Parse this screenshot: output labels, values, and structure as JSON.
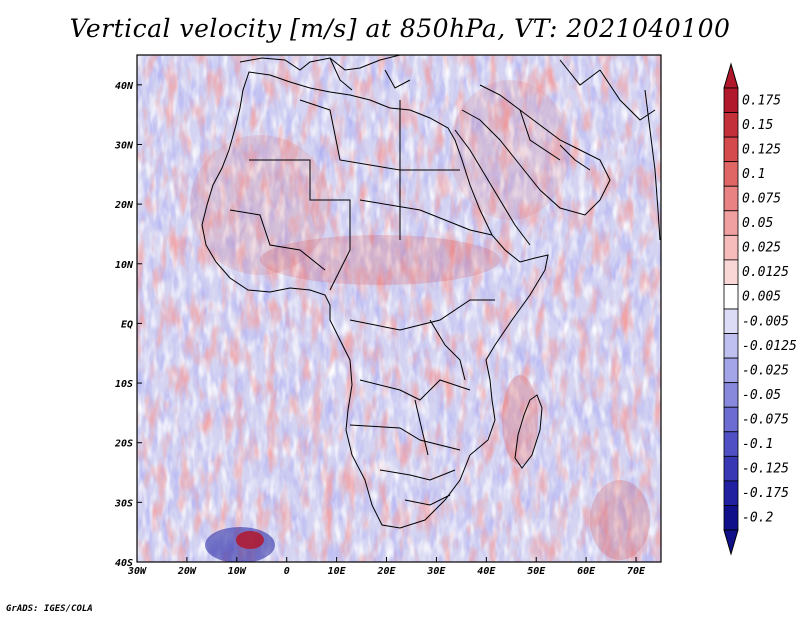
{
  "title": "Vertical velocity [m/s] at 850hPa, VT: 2021040100",
  "credit": "GrADS: IGES/COLA",
  "map": {
    "lon_range": [
      -30,
      75
    ],
    "lat_range": [
      -40,
      45
    ],
    "field": "vertical velocity",
    "level": "850hPa",
    "units": "m/s",
    "valid_time": "2021040100",
    "x_ticks": [
      {
        "value": -30,
        "label": "30W"
      },
      {
        "value": -20,
        "label": "20W"
      },
      {
        "value": -10,
        "label": "10W"
      },
      {
        "value": 0,
        "label": "0"
      },
      {
        "value": 10,
        "label": "10E"
      },
      {
        "value": 20,
        "label": "20E"
      },
      {
        "value": 30,
        "label": "30E"
      },
      {
        "value": 40,
        "label": "40E"
      },
      {
        "value": 50,
        "label": "50E"
      },
      {
        "value": 60,
        "label": "60E"
      },
      {
        "value": 70,
        "label": "70E"
      }
    ],
    "y_ticks": [
      {
        "value": 40,
        "label": "40N"
      },
      {
        "value": 30,
        "label": "30N"
      },
      {
        "value": 20,
        "label": "20N"
      },
      {
        "value": 10,
        "label": "10N"
      },
      {
        "value": 0,
        "label": "EQ"
      },
      {
        "value": -10,
        "label": "10S"
      },
      {
        "value": -20,
        "label": "20S"
      },
      {
        "value": -30,
        "label": "30S"
      },
      {
        "value": -40,
        "label": "40S"
      }
    ]
  },
  "colorbar": {
    "levels": [
      {
        "label": "0.175",
        "color": "#b2182b"
      },
      {
        "label": "0.15",
        "color": "#c4303a"
      },
      {
        "label": "0.125",
        "color": "#d44a4d"
      },
      {
        "label": "0.1",
        "color": "#e06666"
      },
      {
        "label": "0.075",
        "color": "#e98383"
      },
      {
        "label": "0.05",
        "color": "#f0a0a0"
      },
      {
        "label": "0.025",
        "color": "#f6bcbc"
      },
      {
        "label": "0.0125",
        "color": "#fad7d7"
      },
      {
        "label": "0.005",
        "color": "#ffffff"
      },
      {
        "label": "-0.005",
        "color": "#dcdcf6"
      },
      {
        "label": "-0.0125",
        "color": "#c0c0f0"
      },
      {
        "label": "-0.025",
        "color": "#a4a4e8"
      },
      {
        "label": "-0.05",
        "color": "#8888dd"
      },
      {
        "label": "-0.075",
        "color": "#6c6cd2"
      },
      {
        "label": "-0.1",
        "color": "#5050c4"
      },
      {
        "label": "-0.125",
        "color": "#3838b4"
      },
      {
        "label": "-0.175",
        "color": "#2020a0"
      },
      {
        "label": "-0.2",
        "color": "#10108a"
      }
    ],
    "top_color": "#b2182b",
    "bottom_color": "#10108a"
  }
}
